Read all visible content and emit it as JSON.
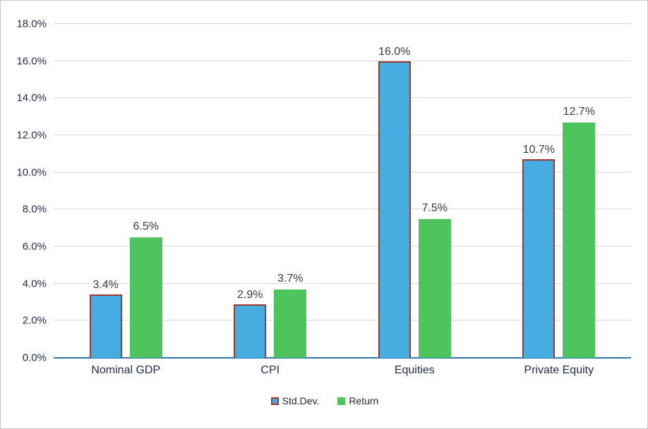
{
  "colors": {
    "std_fill": "#45ade0",
    "std_border": "#9f3632",
    "return_fill": "#4ec45f",
    "axis_line": "#2e75b6",
    "gridline": "#d9d9d9",
    "tick_text": "#242b53",
    "category_text": "#242b53",
    "data_label_text": "#3b3b3b"
  },
  "chart_data": {
    "type": "bar",
    "title": "",
    "xlabel": "",
    "ylabel": "",
    "categories": [
      "Nominal GDP",
      "CPI",
      "Equities",
      "Private Equity"
    ],
    "series": [
      {
        "name": "Std.Dev.",
        "values": [
          3.4,
          2.9,
          16.0,
          10.7
        ],
        "labels": [
          "3.4%",
          "2.9%",
          "16.0%",
          "10.7%"
        ]
      },
      {
        "name": "Return",
        "values": [
          6.5,
          3.7,
          7.5,
          12.7
        ],
        "labels": [
          "6.5%",
          "3.7%",
          "7.5%",
          "12.7%"
        ]
      }
    ],
    "ylim": [
      0,
      18
    ],
    "y_tick_step": 2,
    "y_tick_labels": [
      "0.0%",
      "2.0%",
      "4.0%",
      "6.0%",
      "8.0%",
      "10.0%",
      "12.0%",
      "14.0%",
      "16.0%",
      "18.0%"
    ],
    "grid": "horizontal",
    "legend_position": "bottom",
    "legend": [
      "Std.Dev.",
      "Return"
    ]
  }
}
